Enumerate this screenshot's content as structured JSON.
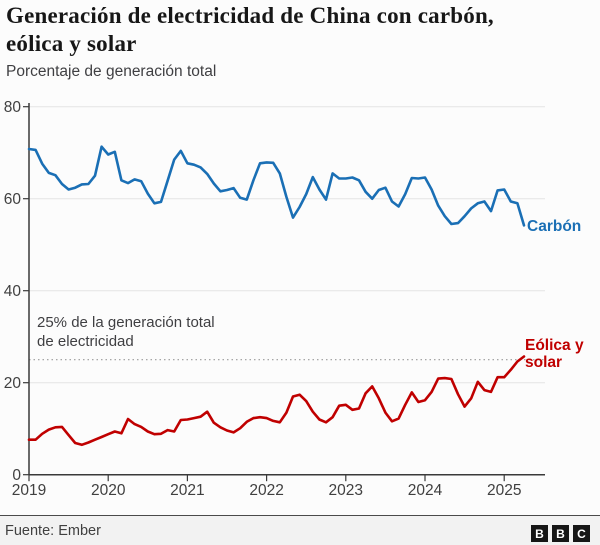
{
  "header": {
    "title_line1": "Generación de electricidad de China con carbón,",
    "title_line2": "eólica y solar",
    "subtitle": "Porcentaje de generación total"
  },
  "chart_data": {
    "type": "line",
    "x_frequency": "monthly",
    "x_range": [
      "2019-01",
      "2025-04"
    ],
    "x_tick_labels": [
      "2019",
      "2020",
      "2021",
      "2022",
      "2023",
      "2024",
      "2025"
    ],
    "y_ticks": [
      0,
      20,
      40,
      60,
      80
    ],
    "ylim": [
      0,
      80
    ],
    "grid": true,
    "annotation": {
      "line1": "25% de la generación total",
      "line2": "de electricidad",
      "value": 25
    },
    "series": [
      {
        "key": "coal-line",
        "label": "Carbón",
        "color": "#1A6FB5",
        "values": [
          70.8,
          70.6,
          67.6,
          65.6,
          65.1,
          63.2,
          62.0,
          62.4,
          63.1,
          63.2,
          65.0,
          71.3,
          69.6,
          70.2,
          64.0,
          63.4,
          64.2,
          63.8,
          61.1,
          59.0,
          59.3,
          63.9,
          68.5,
          70.4,
          67.7,
          67.4,
          66.8,
          65.4,
          63.3,
          61.6,
          61.9,
          62.3,
          60.2,
          59.8,
          64.0,
          67.7,
          67.9,
          67.8,
          65.5,
          60.4,
          55.9,
          58.2,
          61.0,
          64.7,
          62.0,
          59.8,
          65.5,
          64.4,
          64.4,
          64.6,
          64.0,
          61.5,
          60.0,
          61.9,
          62.4,
          59.4,
          58.3,
          61.0,
          64.5,
          64.4,
          64.6,
          62.0,
          58.5,
          56.2,
          54.5,
          54.7,
          56.2,
          57.9,
          59.0,
          59.4,
          57.3,
          61.8,
          62.0,
          59.4,
          59.0,
          54.2
        ]
      },
      {
        "key": "wind-solar-line",
        "label_line1": "Eólica y",
        "label_line2": "solar",
        "color": "#C00000",
        "values": [
          7.6,
          7.6,
          8.9,
          9.8,
          10.3,
          10.4,
          8.6,
          6.9,
          6.5,
          7.0,
          7.6,
          8.2,
          8.8,
          9.4,
          9.0,
          12.1,
          11.0,
          10.4,
          9.4,
          8.8,
          8.9,
          9.7,
          9.4,
          11.9,
          12.0,
          12.3,
          12.6,
          13.7,
          11.3,
          10.3,
          9.6,
          9.2,
          10.1,
          11.5,
          12.3,
          12.5,
          12.3,
          11.7,
          11.4,
          13.5,
          17.0,
          17.4,
          16.0,
          13.7,
          12.0,
          11.4,
          12.5,
          15.0,
          15.2,
          14.1,
          14.4,
          17.7,
          19.2,
          16.6,
          13.5,
          11.6,
          12.2,
          15.2,
          17.9,
          15.8,
          16.2,
          18.0,
          20.9,
          21.0,
          20.8,
          17.5,
          14.8,
          16.6,
          20.2,
          18.4,
          18.0,
          21.2,
          21.2,
          22.8,
          24.6,
          25.7
        ]
      }
    ],
    "colors": {
      "grid": "#e4e4e4",
      "axis": "#3a3a3a",
      "dotted_line": "#9a9a9a"
    }
  },
  "footer": {
    "source": "Fuente: Ember",
    "logo_letters": [
      "B",
      "B",
      "C"
    ]
  }
}
